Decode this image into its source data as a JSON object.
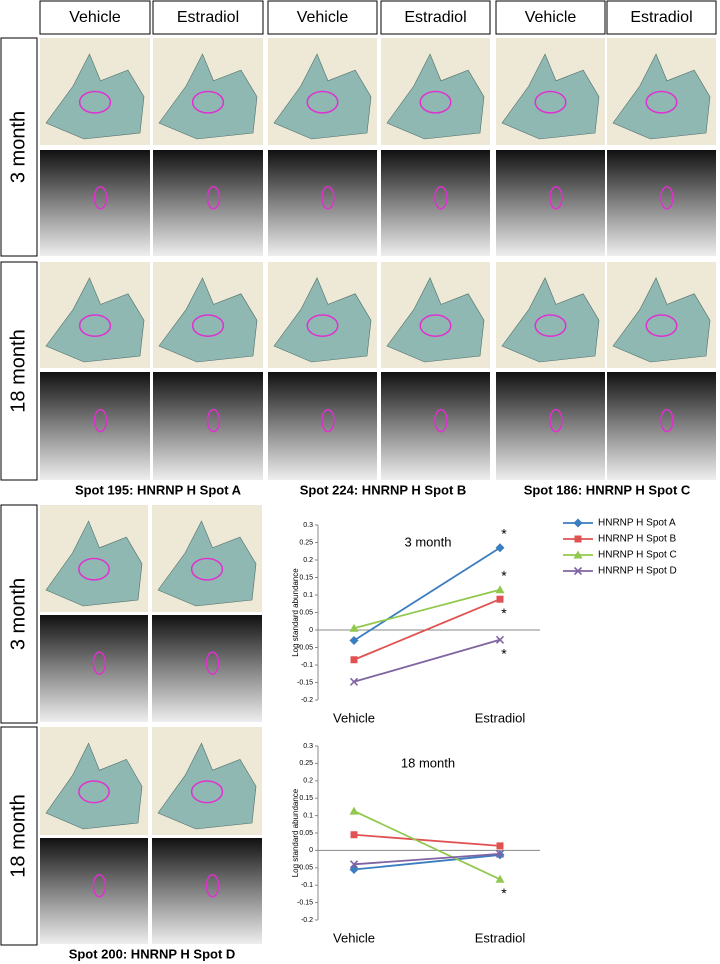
{
  "panels": {
    "top": {
      "columns": [
        "Vehicle",
        "Estradiol",
        "Vehicle",
        "Estradiol",
        "Vehicle",
        "Estradiol"
      ],
      "rows": [
        "3 month",
        "18 month"
      ],
      "captions": [
        "Spot 195: HNRNP H Spot A",
        "Spot 224: HNRNP H Spot B",
        "Spot 186: HNRNP H Spot C"
      ]
    },
    "bottom": {
      "rows": [
        "3 month",
        "18 month"
      ],
      "caption": "Spot 200: HNRNP H  Spot D"
    }
  },
  "chart_data": [
    {
      "type": "line",
      "title": "3 month",
      "y_label": "Log standard abundance",
      "categories": [
        "Vehicle",
        "Estradiol"
      ],
      "ylim": [
        -0.2,
        0.3
      ],
      "yticks": [
        -0.2,
        -0.15,
        -0.1,
        -0.05,
        0,
        0.05,
        0.1,
        0.15,
        0.2,
        0.25,
        0.3
      ],
      "legend": "right",
      "series": [
        {
          "name": "HNRNP H Spot A",
          "color": "#3a7dc0",
          "marker": "diamond",
          "values": [
            -0.03,
            0.235
          ]
        },
        {
          "name": "HNRNP H Spot B",
          "color": "#e05252",
          "marker": "square",
          "values": [
            -0.085,
            0.088
          ]
        },
        {
          "name": "HNRNP H Spot C",
          "color": "#92c84e",
          "marker": "triangle",
          "values": [
            0.005,
            0.115
          ]
        },
        {
          "name": "HNRNP H Spot D",
          "color": "#8064a2",
          "marker": "x",
          "values": [
            -0.148,
            -0.028
          ]
        }
      ],
      "annotations": [
        {
          "text": "*",
          "series": 0,
          "category": 1,
          "position": "above"
        },
        {
          "text": "*",
          "series": 2,
          "category": 1,
          "position": "above"
        },
        {
          "text": "*",
          "series": 1,
          "category": 1,
          "position": "below"
        },
        {
          "text": "*",
          "series": 3,
          "category": 1,
          "position": "below"
        }
      ]
    },
    {
      "type": "line",
      "title": "18 month",
      "y_label": "Log standard abundance",
      "categories": [
        "Vehicle",
        "Estradiol"
      ],
      "ylim": [
        -0.2,
        0.3
      ],
      "yticks": [
        -0.2,
        -0.15,
        -0.1,
        -0.05,
        0,
        0.05,
        0.1,
        0.15,
        0.2,
        0.25,
        0.3
      ],
      "legend": "none",
      "series": [
        {
          "name": "HNRNP H Spot A",
          "color": "#3a7dc0",
          "marker": "diamond",
          "values": [
            -0.055,
            -0.013
          ]
        },
        {
          "name": "HNRNP H Spot B",
          "color": "#e05252",
          "marker": "square",
          "values": [
            0.045,
            0.013
          ]
        },
        {
          "name": "HNRNP H Spot C",
          "color": "#92c84e",
          "marker": "triangle",
          "values": [
            0.113,
            -0.083
          ]
        },
        {
          "name": "HNRNP H Spot D",
          "color": "#8064a2",
          "marker": "x",
          "values": [
            -0.04,
            -0.01
          ]
        }
      ],
      "annotations": [
        {
          "text": "*",
          "series": 2,
          "category": 1,
          "position": "below"
        }
      ]
    }
  ]
}
